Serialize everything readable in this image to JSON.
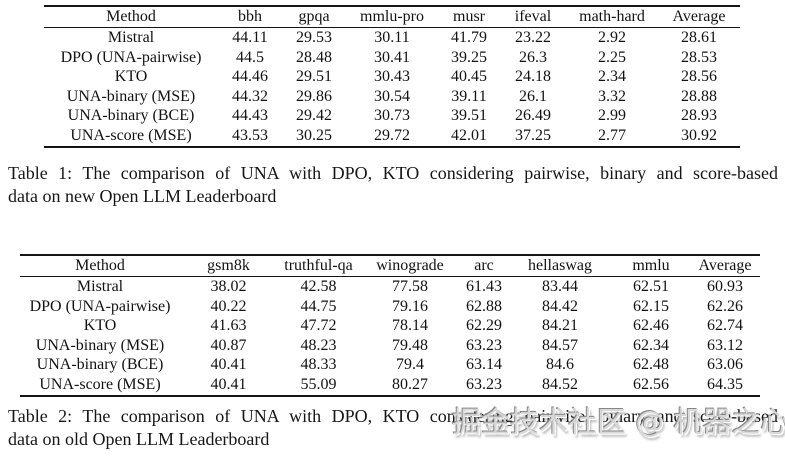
{
  "page": {
    "background": "#ffffff",
    "text_color": "#121212"
  },
  "tables": [
    {
      "name": "table-1",
      "headers": [
        "Method",
        "bbh",
        "gpqa",
        "mmlu-pro",
        "musr",
        "ifeval",
        "math-hard",
        "Average"
      ],
      "rows": [
        {
          "cells": [
            "Mistral",
            "44.11",
            "29.53",
            "30.11",
            "41.79",
            "23.22",
            "2.92",
            "28.61"
          ],
          "bold": []
        },
        {
          "cells": [
            "DPO (UNA-pairwise)",
            "44.5",
            "28.48",
            "30.41",
            "39.25",
            "26.3",
            "2.25",
            "28.53"
          ],
          "bold": [
            1
          ]
        },
        {
          "cells": [
            "KTO",
            "44.46",
            "29.51",
            "30.43",
            "40.45",
            "24.18",
            "2.34",
            "28.56"
          ],
          "bold": []
        },
        {
          "cells": [
            "UNA-binary (MSE)",
            "44.32",
            "29.86",
            "30.54",
            "39.11",
            "26.1",
            "3.32",
            "28.88"
          ],
          "bold": [
            6
          ]
        },
        {
          "cells": [
            "UNA-binary (BCE)",
            "44.43",
            "29.42",
            "30.73",
            "39.51",
            "26.49",
            "2.99",
            "28.93"
          ],
          "bold": [
            3
          ]
        },
        {
          "cells": [
            "UNA-score (MSE)",
            "43.53",
            "30.25",
            "29.72",
            "42.01",
            "37.25",
            "2.77",
            "30.92"
          ],
          "bold": [
            2,
            4,
            5,
            7
          ]
        }
      ],
      "caption_line1": "Table 1:  The comparison of UNA with DPO, KTO considering pairwise, binary and score-based",
      "caption_line2": "data on new Open LLM Leaderboard"
    },
    {
      "name": "table-2",
      "headers": [
        "Method",
        "gsm8k",
        "truthful-qa",
        "winograde",
        "arc",
        "hellaswag",
        "mmlu",
        "Average"
      ],
      "rows": [
        {
          "cells": [
            "Mistral",
            "38.02",
            "42.58",
            "77.58",
            "61.43",
            "83.44",
            "62.51",
            "60.93"
          ],
          "bold": []
        },
        {
          "cells": [
            "DPO (UNA-pairwise)",
            "40.22",
            "44.75",
            "79.16",
            "62.88",
            "84.42",
            "62.15",
            "62.26"
          ],
          "bold": []
        },
        {
          "cells": [
            "KTO",
            "41.63",
            "47.72",
            "78.14",
            "62.29",
            "84.21",
            "62.46",
            "62.74"
          ],
          "bold": [
            1
          ]
        },
        {
          "cells": [
            "UNA-binary (MSE)",
            "40.87",
            "48.23",
            "79.48",
            "63.23",
            "84.57",
            "62.34",
            "63.12"
          ],
          "bold": [
            4
          ]
        },
        {
          "cells": [
            "UNA-binary (BCE)",
            "40.41",
            "48.33",
            "79.4",
            "63.14",
            "84.6",
            "62.48",
            "63.06"
          ],
          "bold": [
            5
          ]
        },
        {
          "cells": [
            "UNA-score (MSE)",
            "40.41",
            "55.09",
            "80.27",
            "63.23",
            "84.52",
            "62.56",
            "64.35"
          ],
          "bold": [
            2,
            3,
            4,
            6,
            7
          ]
        }
      ],
      "caption_line1": "Table 2:  The comparison of UNA with DPO, KTO considering pairwise, binary and score-based",
      "caption_line2": "data on old Open LLM Leaderboard"
    }
  ],
  "watermark": {
    "text": "掘金技术社区 @ 机器之心",
    "color": "#d7d7d7"
  }
}
